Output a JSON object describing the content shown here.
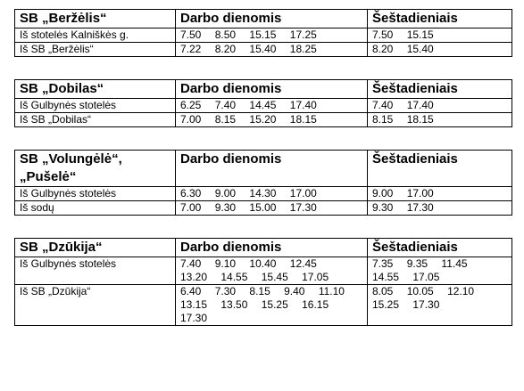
{
  "columns": {
    "weekdays": "Darbo dienomis",
    "saturdays": "Šeštadieniais"
  },
  "sections": [
    {
      "title": "SB „Beržėlis“",
      "rows": [
        {
          "from": "Iš stotelės Kalniškės g.",
          "weekdays": [
            "7.50",
            "8.50",
            "15.15",
            "17.25"
          ],
          "saturdays": [
            "7.50",
            "15.15"
          ]
        },
        {
          "from": "Iš SB „Beržėlis“",
          "weekdays": [
            "7.22",
            "8.20",
            "15.40",
            "18.25"
          ],
          "saturdays": [
            "8.20",
            "15.40"
          ]
        }
      ]
    },
    {
      "title": "SB „Dobilas“",
      "rows": [
        {
          "from": "Iš Gulbynės stotelės",
          "weekdays": [
            "6.25",
            "7.40",
            "14.45",
            "17.40"
          ],
          "saturdays": [
            "7.40",
            "17.40"
          ]
        },
        {
          "from": "Iš SB „Dobilas“",
          "weekdays": [
            "7.00",
            "8.15",
            "15.20",
            "18.15"
          ],
          "saturdays": [
            "8.15",
            "18.15"
          ]
        }
      ]
    },
    {
      "title": "SB „Volungėlė“, „Pušelė“",
      "rows": [
        {
          "from": "Iš Gulbynės stotelės",
          "weekdays": [
            "6.30",
            "9.00",
            "14.30",
            "17.00"
          ],
          "saturdays": [
            "9.00",
            "17.00"
          ]
        },
        {
          "from": "Iš sodų",
          "weekdays": [
            "7.00",
            "9.30",
            "15.00",
            "17.30"
          ],
          "saturdays": [
            "9.30",
            "17.30"
          ]
        }
      ]
    },
    {
      "title": "SB „Dzūkija“",
      "rows": [
        {
          "from": "Iš Gulbynės stotelės",
          "weekdays": [
            "7.40",
            "9.10",
            "10.40",
            "12.45",
            "13.20",
            "14.55",
            "15.45",
            "17.05"
          ],
          "saturdays": [
            "7.35",
            "9.35",
            "11.45",
            "14.55",
            "17.05"
          ]
        },
        {
          "from": "Iš SB „Dzūkija“",
          "weekdays": [
            "6.40",
            "7.30",
            "8.15",
            "9.40",
            "11.10",
            "13.15",
            "13.50",
            "15.25",
            "16.15",
            "17.30"
          ],
          "saturdays": [
            "8.05",
            "10.05",
            "12.10",
            "15.25",
            "17.30"
          ]
        }
      ]
    }
  ]
}
